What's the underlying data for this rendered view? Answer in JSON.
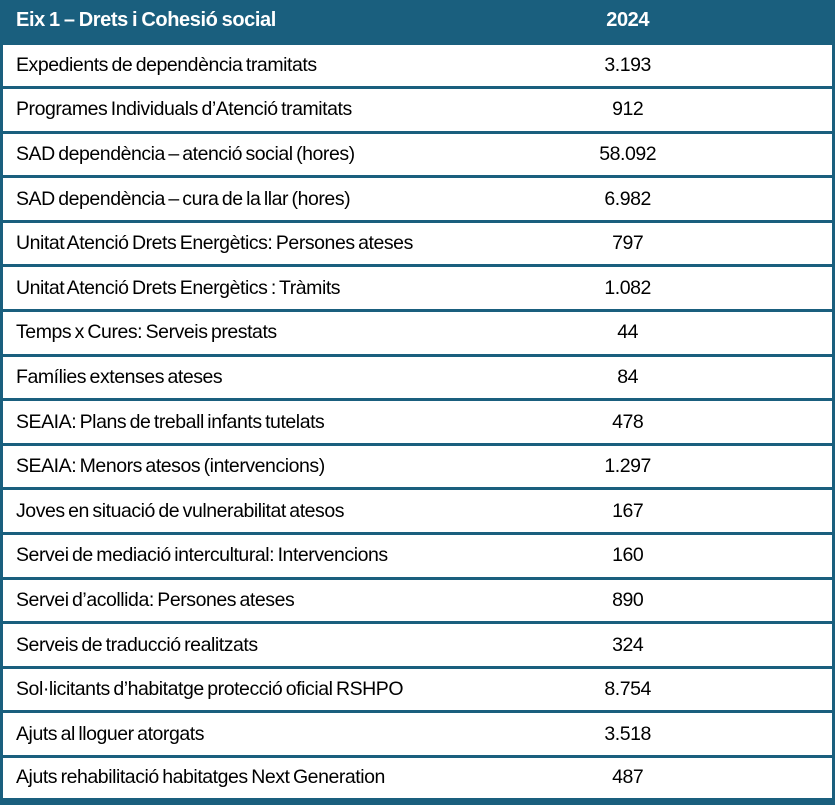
{
  "table": {
    "header": {
      "title": "Eix 1 – Drets i Cohesió social",
      "year": "2024"
    },
    "rows": [
      {
        "label": "Expedients de dependència tramitats",
        "value": "3.193"
      },
      {
        "label": "Programes Individuals d’Atenció tramitats",
        "value": "912"
      },
      {
        "label": "SAD dependència – atenció social (hores)",
        "value": "58.092"
      },
      {
        "label": "SAD dependència – cura de la llar (hores)",
        "value": "6.982"
      },
      {
        "label": "Unitat Atenció Drets Energètics: Persones ateses",
        "value": "797"
      },
      {
        "label": "Unitat Atenció Drets Energètics : Tràmits",
        "value": "1.082"
      },
      {
        "label": "Temps x Cures: Serveis prestats",
        "value": "44"
      },
      {
        "label": "Famílies extenses ateses",
        "value": "84"
      },
      {
        "label": "SEAIA: Plans de treball infants tutelats",
        "value": "478"
      },
      {
        "label": "SEAIA: Menors atesos (intervencions)",
        "value": "1.297"
      },
      {
        "label": "Joves en situació de vulnerabilitat atesos",
        "value": "167"
      },
      {
        "label": "Servei de mediació intercultural: Intervencions",
        "value": "160"
      },
      {
        "label": "Servei d’acollida: Persones ateses",
        "value": "890"
      },
      {
        "label": "Serveis de traducció realitzats",
        "value": "324"
      },
      {
        "label": "Sol·licitants d’habitatge protecció oficial RSHPO",
        "value": "8.754"
      },
      {
        "label": "Ajuts al lloguer atorgats",
        "value": "3.518"
      },
      {
        "label": "Ajuts rehabilitació habitatges Next Generation",
        "value": "487"
      }
    ],
    "colors": {
      "teal": "#1a5f7e",
      "row_bg": "#ffffff",
      "header_text": "#ffffff",
      "row_text": "#000000"
    }
  }
}
